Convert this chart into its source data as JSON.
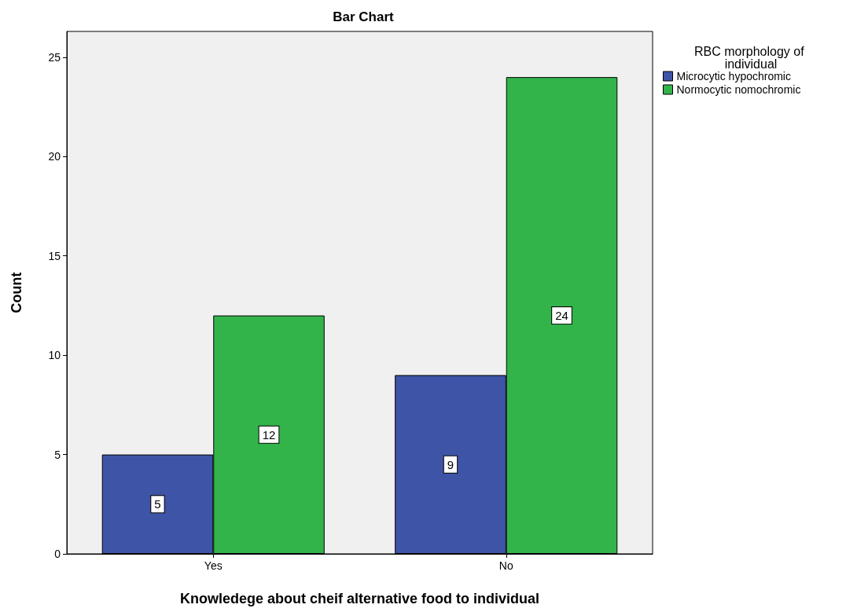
{
  "chart_data": {
    "type": "bar",
    "title": "Bar Chart",
    "xlabel": "Knowledege about cheif alternative food to individual",
    "ylabel": "Count",
    "legend_title": "RBC morphology of individual",
    "categories": [
      "Yes",
      "No"
    ],
    "series": [
      {
        "name": "Microcytic hypochromic",
        "color": "#3e54a6",
        "values": [
          5,
          9
        ]
      },
      {
        "name": "Normocytic nomochromic",
        "color": "#32b44a",
        "values": [
          12,
          24
        ]
      }
    ],
    "ylim": [
      0,
      26.3
    ],
    "yticks": [
      0,
      5,
      10,
      15,
      20,
      25
    ],
    "grid": false,
    "legend": "top right",
    "data_labels": true
  }
}
